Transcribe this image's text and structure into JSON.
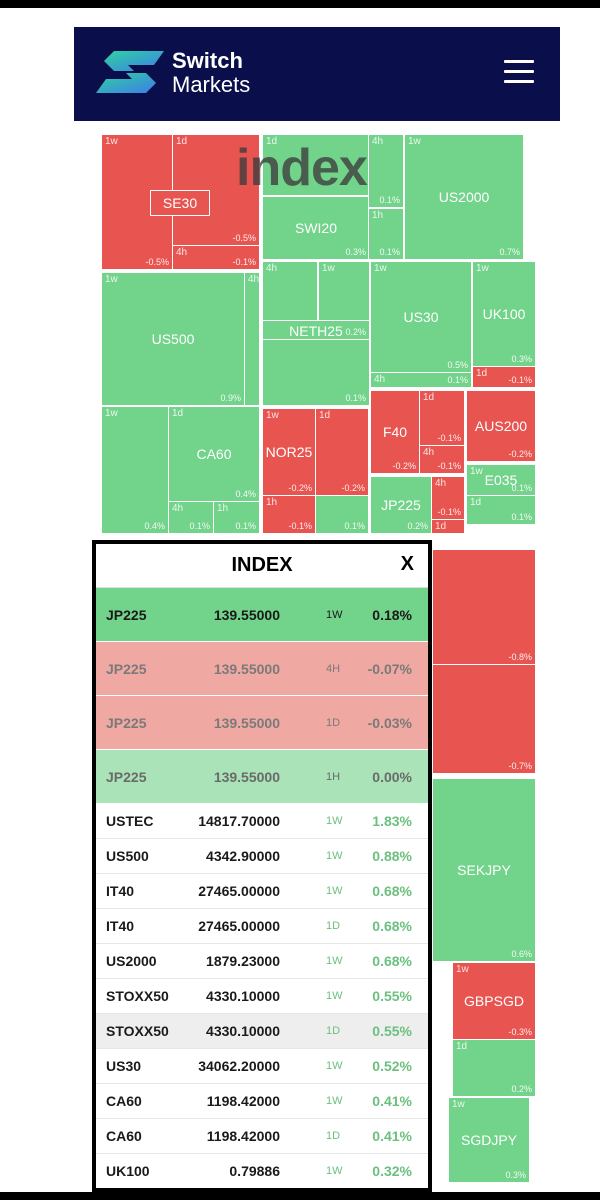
{
  "header": {
    "logo_line1": "Switch",
    "logo_line2": "Markets",
    "colors": {
      "navy": "#0a0e4a",
      "logo_gradient_start": "#2fd3a0",
      "logo_gradient_end": "#3d7de8"
    }
  },
  "overlay_title": "index",
  "treemap": {
    "colors": {
      "up": "#72d38a",
      "down": "#e85450"
    },
    "tiles": [
      {
        "id": "se30-1w",
        "tf": "1w",
        "name": "",
        "pct": "-0.5%",
        "c": "r"
      },
      {
        "id": "se30-1d",
        "tf": "1d",
        "name": "",
        "pct": "-0.5%",
        "c": "r"
      },
      {
        "id": "se30-4h",
        "tf": "4h",
        "name": "",
        "pct": "-0.1%",
        "c": "r"
      },
      {
        "id": "se30-label",
        "tf": "",
        "name": "SE30",
        "pct": "",
        "c": "r"
      },
      {
        "id": "swi20-1w",
        "tf": "",
        "name": "SWI20",
        "pct": "0.3%",
        "c": "g"
      },
      {
        "id": "swi20-1d",
        "tf": "1d",
        "name": "",
        "pct": "",
        "c": "g"
      },
      {
        "id": "swi20-4h",
        "tf": "4h",
        "name": "",
        "pct": "0.1%",
        "c": "g"
      },
      {
        "id": "swi20-1h",
        "tf": "1h",
        "name": "",
        "pct": "0.1%",
        "c": "g"
      },
      {
        "id": "us2000-1w",
        "tf": "1w",
        "name": "US2000",
        "pct": "0.7%",
        "c": "g"
      },
      {
        "id": "us500-1w",
        "tf": "1w",
        "name": "US500",
        "pct": "0.9%",
        "c": "g"
      },
      {
        "id": "us500-4h",
        "tf": "4h",
        "name": "",
        "pct": "",
        "c": "g"
      },
      {
        "id": "neth25-4h",
        "tf": "4h",
        "name": "",
        "pct": "",
        "c": "g"
      },
      {
        "id": "neth25-1w",
        "tf": "1w",
        "name": "",
        "pct": "0.2%",
        "c": "g"
      },
      {
        "id": "neth25-label",
        "tf": "",
        "name": "NETH25",
        "pct": "0.2%",
        "c": "g"
      },
      {
        "id": "neth25-1h",
        "tf": "",
        "name": "",
        "pct": "0.1%",
        "c": "g"
      },
      {
        "id": "us30-1w",
        "tf": "1w",
        "name": "US30",
        "pct": "0.5%",
        "c": "g"
      },
      {
        "id": "us30-4h",
        "tf": "4h",
        "name": "",
        "pct": "0.1%",
        "c": "g"
      },
      {
        "id": "uk100-1w",
        "tf": "1w",
        "name": "UK100",
        "pct": "0.3%",
        "c": "g"
      },
      {
        "id": "uk100-1d",
        "tf": "1d",
        "name": "",
        "pct": "-0.1%",
        "c": "r"
      },
      {
        "id": "ca60-1w",
        "tf": "1w",
        "name": "",
        "pct": "0.4%",
        "c": "g"
      },
      {
        "id": "ca60-1d",
        "tf": "1d",
        "name": "CA60",
        "pct": "0.4%",
        "c": "g"
      },
      {
        "id": "ca60-4h",
        "tf": "4h",
        "name": "",
        "pct": "0.1%",
        "c": "g"
      },
      {
        "id": "ca60-1h",
        "tf": "1h",
        "name": "",
        "pct": "0.1%",
        "c": "g"
      },
      {
        "id": "nor25-1w",
        "tf": "1w",
        "name": "NOR25",
        "pct": "-0.2%",
        "c": "r"
      },
      {
        "id": "nor25-1d",
        "tf": "1d",
        "name": "",
        "pct": "-0.2%",
        "c": "r"
      },
      {
        "id": "nor25-1h",
        "tf": "1h",
        "name": "",
        "pct": "-0.1%",
        "c": "r"
      },
      {
        "id": "nor25-4h",
        "tf": "",
        "name": "",
        "pct": "0.1%",
        "c": "g"
      },
      {
        "id": "f40-1w",
        "tf": "",
        "name": "F40",
        "pct": "-0.2%",
        "c": "r"
      },
      {
        "id": "f40-1d",
        "tf": "1d",
        "name": "",
        "pct": "-0.1%",
        "c": "r"
      },
      {
        "id": "f40-4h",
        "tf": "4h",
        "name": "",
        "pct": "-0.1%",
        "c": "r"
      },
      {
        "id": "aus200-1w",
        "tf": "",
        "name": "AUS200",
        "pct": "-0.2%",
        "c": "r"
      },
      {
        "id": "jp225-tile",
        "tf": "",
        "name": "JP225",
        "pct": "0.2%",
        "c": "g"
      },
      {
        "id": "jp225-4h",
        "tf": "4h",
        "name": "",
        "pct": "-0.1%",
        "c": "r"
      },
      {
        "id": "jp225-1d",
        "tf": "1d",
        "name": "",
        "pct": "",
        "c": "r"
      },
      {
        "id": "e035-1w",
        "tf": "1w",
        "name": "E035",
        "pct": "0.1%",
        "c": "g"
      },
      {
        "id": "e035-1d",
        "tf": "1d",
        "name": "",
        "pct": "0.1%",
        "c": "g"
      },
      {
        "id": "fx-top",
        "tf": "",
        "name": "",
        "pct": "-0.8%",
        "c": "r"
      },
      {
        "id": "fx-mid",
        "tf": "",
        "name": "",
        "pct": "-0.7%",
        "c": "r"
      },
      {
        "id": "sekjpy",
        "tf": "",
        "name": "SEKJPY",
        "pct": "0.6%",
        "c": "g"
      },
      {
        "id": "gbpsgd-1w",
        "tf": "1w",
        "name": "GBPSGD",
        "pct": "-0.3%",
        "c": "r"
      },
      {
        "id": "gbpsgd-1d",
        "tf": "1d",
        "name": "",
        "pct": "0.2%",
        "c": "g"
      },
      {
        "id": "sgdjpy-1w",
        "tf": "1w",
        "name": "SGDJPY",
        "pct": "0.3%",
        "c": "g"
      }
    ]
  },
  "panel": {
    "title": "INDEX",
    "close_label": "X",
    "rows": [
      {
        "symbol": "JP225",
        "price": "139.55000",
        "period": "1W",
        "change": "0.18%",
        "style": "rg1"
      },
      {
        "symbol": "JP225",
        "price": "139.55000",
        "period": "4H",
        "change": "-0.07%",
        "style": "rr"
      },
      {
        "symbol": "JP225",
        "price": "139.55000",
        "period": "1D",
        "change": "-0.03%",
        "style": "rr"
      },
      {
        "symbol": "JP225",
        "price": "139.55000",
        "period": "1H",
        "change": "0.00%",
        "style": "rg2"
      },
      {
        "symbol": "USTEC",
        "price": "14817.70000",
        "period": "1W",
        "change": "1.83%",
        "style": "plain"
      },
      {
        "symbol": "US500",
        "price": "4342.90000",
        "period": "1W",
        "change": "0.88%",
        "style": "plain"
      },
      {
        "symbol": "IT40",
        "price": "27465.00000",
        "period": "1W",
        "change": "0.68%",
        "style": "plain"
      },
      {
        "symbol": "IT40",
        "price": "27465.00000",
        "period": "1D",
        "change": "0.68%",
        "style": "plain"
      },
      {
        "symbol": "US2000",
        "price": "1879.23000",
        "period": "1W",
        "change": "0.68%",
        "style": "plain"
      },
      {
        "symbol": "STOXX50",
        "price": "4330.10000",
        "period": "1W",
        "change": "0.55%",
        "style": "plain"
      },
      {
        "symbol": "STOXX50",
        "price": "4330.10000",
        "period": "1D",
        "change": "0.55%",
        "style": "shade"
      },
      {
        "symbol": "US30",
        "price": "34062.20000",
        "period": "1W",
        "change": "0.52%",
        "style": "plain"
      },
      {
        "symbol": "CA60",
        "price": "1198.42000",
        "period": "1W",
        "change": "0.41%",
        "style": "plain"
      },
      {
        "symbol": "CA60",
        "price": "1198.42000",
        "period": "1D",
        "change": "0.41%",
        "style": "plain"
      },
      {
        "symbol": "UK100",
        "price": "0.79886",
        "period": "1W",
        "change": "0.32%",
        "style": "plain"
      }
    ]
  }
}
